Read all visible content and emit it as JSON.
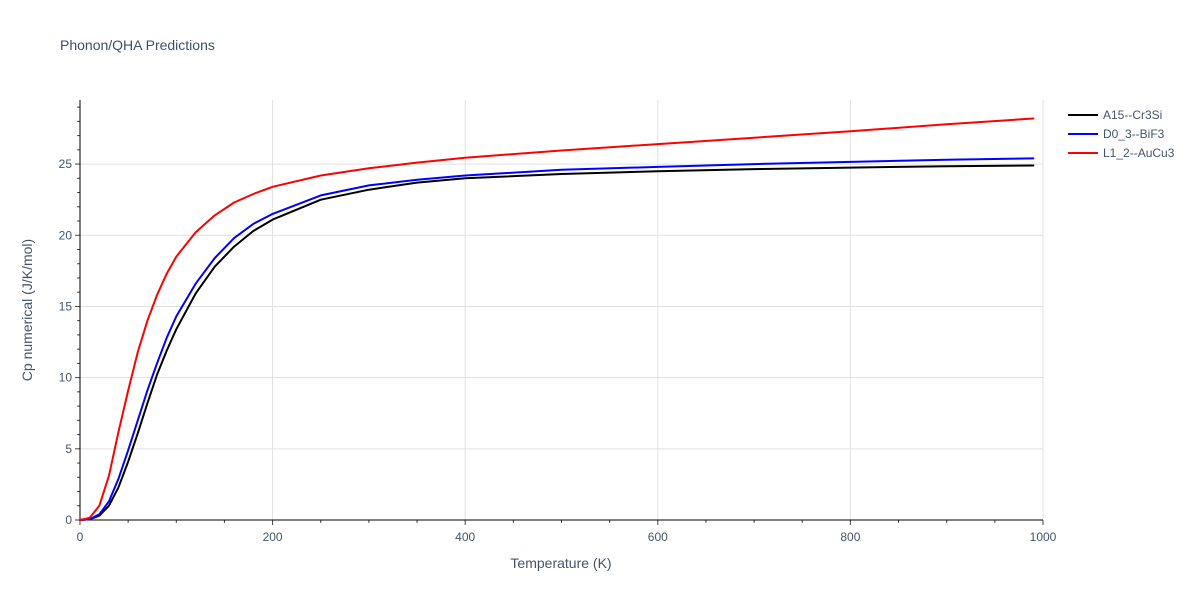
{
  "chart_data": {
    "type": "line",
    "title": "Phonon/QHA Predictions",
    "xlabel": "Temperature (K)",
    "ylabel": "Cp numerical (J/K/mol)",
    "xlim": [
      0,
      1000
    ],
    "ylim": [
      0,
      29.5
    ],
    "x_ticks": [
      0,
      200,
      400,
      600,
      800,
      1000
    ],
    "y_ticks": [
      0,
      5,
      10,
      15,
      20,
      25
    ],
    "grid": true,
    "legend_position": "top-right",
    "series": [
      {
        "name": "A15--Cr3Si",
        "color": "#000000",
        "x": [
          0,
          10,
          20,
          30,
          40,
          50,
          60,
          70,
          80,
          90,
          100,
          120,
          140,
          160,
          180,
          200,
          250,
          300,
          350,
          400,
          500,
          600,
          700,
          800,
          900,
          990
        ],
        "y": [
          0,
          0.05,
          0.3,
          1.0,
          2.3,
          4.1,
          6.1,
          8.2,
          10.2,
          11.9,
          13.4,
          15.9,
          17.8,
          19.2,
          20.3,
          21.1,
          22.5,
          23.2,
          23.7,
          24.0,
          24.3,
          24.5,
          24.65,
          24.75,
          24.85,
          24.9
        ]
      },
      {
        "name": "D0_3--BiF3",
        "color": "#0000ff",
        "x": [
          0,
          10,
          20,
          30,
          40,
          50,
          60,
          70,
          80,
          90,
          100,
          120,
          140,
          160,
          180,
          200,
          250,
          300,
          350,
          400,
          500,
          600,
          700,
          800,
          900,
          990
        ],
        "y": [
          0,
          0.05,
          0.4,
          1.3,
          2.9,
          4.9,
          7.0,
          9.1,
          11.0,
          12.8,
          14.3,
          16.6,
          18.4,
          19.8,
          20.8,
          21.5,
          22.8,
          23.5,
          23.9,
          24.2,
          24.6,
          24.8,
          25.0,
          25.15,
          25.3,
          25.4
        ]
      },
      {
        "name": "L1_2--AuCu3",
        "color": "#ff0000",
        "x": [
          0,
          10,
          20,
          30,
          40,
          50,
          60,
          70,
          80,
          90,
          100,
          120,
          140,
          160,
          180,
          200,
          250,
          300,
          350,
          400,
          500,
          600,
          700,
          800,
          900,
          990
        ],
        "y": [
          0,
          0.15,
          1.0,
          3.1,
          6.2,
          9.1,
          11.8,
          14.0,
          15.8,
          17.3,
          18.5,
          20.2,
          21.4,
          22.3,
          22.9,
          23.4,
          24.2,
          24.7,
          25.1,
          25.45,
          25.95,
          26.4,
          26.85,
          27.3,
          27.8,
          28.2
        ]
      }
    ]
  }
}
